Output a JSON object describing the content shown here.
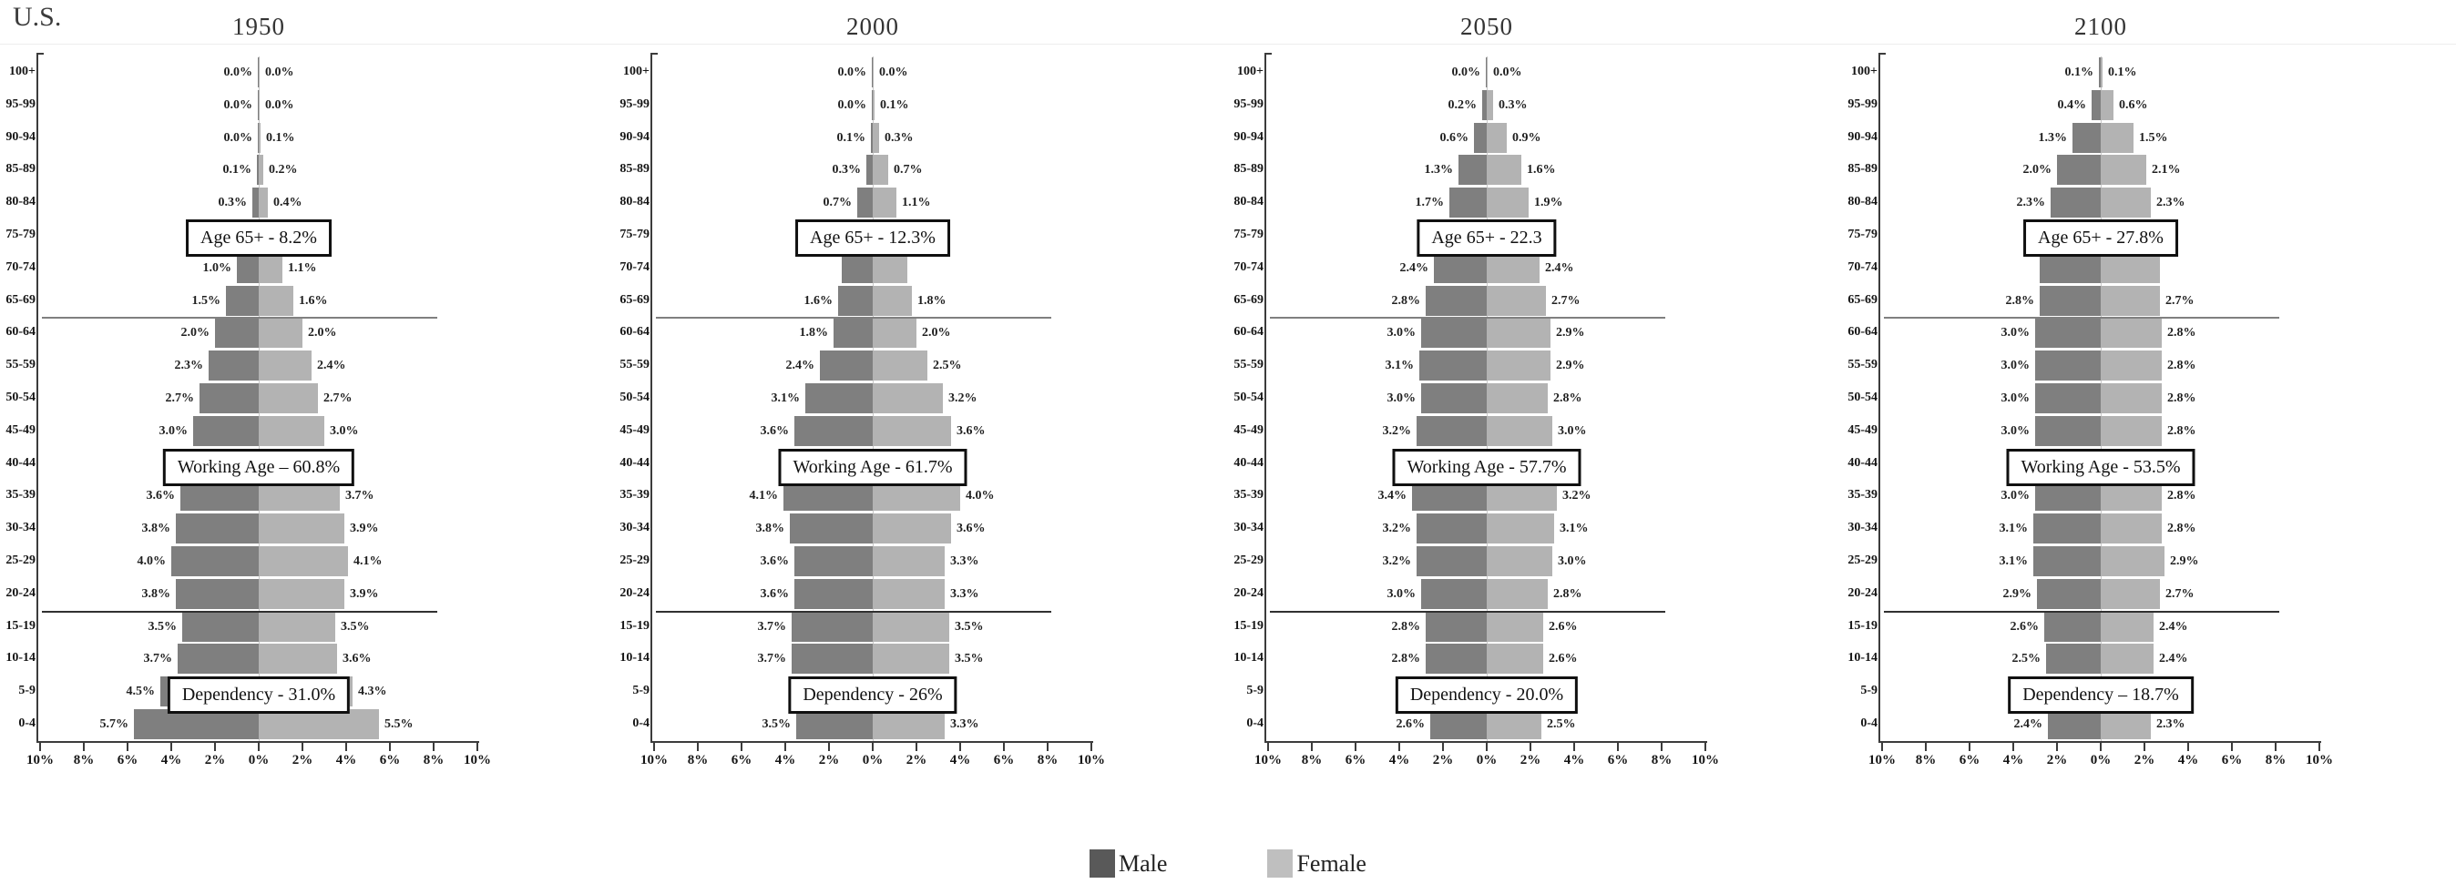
{
  "page": {
    "title": "U.S."
  },
  "legend": {
    "male": "Male",
    "female": "Female"
  },
  "colors": {
    "male_bar": "#7f7f7f",
    "female_bar": "#b3b3b3",
    "legend_male": "#595959",
    "legend_female": "#bfbfbf",
    "separator_65plus": "#808080",
    "separator_working": "#303030",
    "axis": "#3c3c3c"
  },
  "axis": {
    "tick_labels": [
      "10%",
      "8%",
      "6%",
      "4%",
      "2%",
      "0%",
      "2%",
      "4%",
      "6%",
      "8%",
      "10%"
    ],
    "max_percent": 10
  },
  "chart_data": {
    "type": "bar",
    "subtype": "population-pyramid",
    "unit": "percent of total population",
    "x_range_percent": [
      -10,
      10
    ],
    "legend": [
      "Male",
      "Female"
    ],
    "categories_top_to_bottom": [
      "100+",
      "95-99",
      "90-94",
      "85-89",
      "80-84",
      "75-79",
      "70-74",
      "65-69",
      "60-64",
      "55-59",
      "50-54",
      "45-49",
      "40-44",
      "35-39",
      "30-34",
      "25-29",
      "20-24",
      "15-19",
      "10-14",
      "5-9",
      "0-4"
    ],
    "pyramids": [
      {
        "title": "1950",
        "series": [
          {
            "name": "Male",
            "values": [
              0.0,
              0.0,
              0.0,
              0.1,
              0.3,
              0.6,
              1.0,
              1.5,
              2.0,
              2.3,
              2.7,
              3.0,
              3.3,
              3.6,
              3.8,
              4.0,
              3.8,
              3.5,
              3.7,
              4.5,
              5.7
            ]
          },
          {
            "name": "Female",
            "values": [
              0.0,
              0.0,
              0.1,
              0.2,
              0.4,
              0.8,
              1.1,
              1.6,
              2.0,
              2.4,
              2.7,
              3.0,
              3.4,
              3.7,
              3.9,
              4.1,
              3.9,
              3.5,
              3.6,
              4.3,
              5.5
            ]
          }
        ],
        "bar_labels": {
          "male": [
            "0.0%",
            "0.0%",
            "0.0%",
            "0.1%",
            "0.3%",
            null,
            "1.0%",
            "1.5%",
            "2.0%",
            "2.3%",
            "2.7%",
            "3.0%",
            null,
            "3.6%",
            "3.8%",
            "4.0%",
            "3.8%",
            "3.5%",
            "3.7%",
            "4.5%",
            "5.7%"
          ],
          "female": [
            "0.0%",
            "0.0%",
            "0.1%",
            "0.2%",
            "0.4%",
            null,
            "1.1%",
            "1.6%",
            "2.0%",
            "2.4%",
            "2.7%",
            "3.0%",
            null,
            "3.7%",
            "3.9%",
            "4.1%",
            "3.9%",
            "3.5%",
            "3.6%",
            "4.3%",
            "5.5%"
          ]
        },
        "annotations": [
          {
            "name": "age65",
            "text": "Age 65+ - 8.2%"
          },
          {
            "name": "working_age",
            "text": "Working Age – 60.8%"
          },
          {
            "name": "dependency",
            "text": "Dependency -  31.0%"
          }
        ]
      },
      {
        "title": "2000",
        "series": [
          {
            "name": "Male",
            "values": [
              0.0,
              0.0,
              0.1,
              0.3,
              0.7,
              1.1,
              1.4,
              1.6,
              1.8,
              2.4,
              3.1,
              3.6,
              4.0,
              4.1,
              3.8,
              3.6,
              3.6,
              3.7,
              3.7,
              3.7,
              3.5
            ]
          },
          {
            "name": "Female",
            "values": [
              0.0,
              0.1,
              0.3,
              0.7,
              1.1,
              1.5,
              1.6,
              1.8,
              2.0,
              2.5,
              3.2,
              3.6,
              4.0,
              4.0,
              3.6,
              3.3,
              3.3,
              3.5,
              3.5,
              3.6,
              3.3
            ]
          }
        ],
        "bar_labels": {
          "male": [
            "0.0%",
            "0.0%",
            "0.1%",
            "0.3%",
            "0.7%",
            null,
            null,
            "1.6%",
            "1.8%",
            "2.4%",
            "3.1%",
            "3.6%",
            null,
            "4.1%",
            "3.8%",
            "3.6%",
            "3.6%",
            "3.7%",
            "3.7%",
            null,
            "3.5%"
          ],
          "female": [
            "0.0%",
            "0.1%",
            "0.3%",
            "0.7%",
            "1.1%",
            null,
            null,
            "1.8%",
            "2.0%",
            "2.5%",
            "3.2%",
            "3.6%",
            null,
            "4.0%",
            "3.6%",
            "3.3%",
            "3.3%",
            "3.5%",
            "3.5%",
            null,
            "3.3%"
          ]
        },
        "annotations": [
          {
            "name": "age65",
            "text": "Age 65+ - 12.3%"
          },
          {
            "name": "working_age",
            "text": "Working Age - 61.7%"
          },
          {
            "name": "dependency",
            "text": "Dependency - 26%"
          }
        ]
      },
      {
        "title": "2050",
        "series": [
          {
            "name": "Male",
            "values": [
              0.0,
              0.2,
              0.6,
              1.3,
              1.7,
              2.1,
              2.4,
              2.8,
              3.0,
              3.1,
              3.0,
              3.2,
              3.3,
              3.4,
              3.2,
              3.2,
              3.0,
              2.8,
              2.8,
              2.7,
              2.6
            ]
          },
          {
            "name": "Female",
            "values": [
              0.0,
              0.3,
              0.9,
              1.6,
              1.9,
              2.3,
              2.4,
              2.7,
              2.9,
              2.9,
              2.8,
              3.0,
              3.2,
              3.2,
              3.1,
              3.0,
              2.8,
              2.6,
              2.6,
              2.6,
              2.5
            ]
          }
        ],
        "bar_labels": {
          "male": [
            "0.0%",
            "0.2%",
            "0.6%",
            "1.3%",
            "1.7%",
            null,
            "2.4%",
            "2.8%",
            "3.0%",
            "3.1%",
            "3.0%",
            "3.2%",
            null,
            "3.4%",
            "3.2%",
            "3.2%",
            "3.0%",
            "2.8%",
            "2.8%",
            null,
            "2.6%"
          ],
          "female": [
            "0.0%",
            "0.3%",
            "0.9%",
            "1.6%",
            "1.9%",
            null,
            "2.4%",
            "2.7%",
            "2.9%",
            "2.9%",
            "2.8%",
            "3.0%",
            null,
            "3.2%",
            "3.1%",
            "3.0%",
            "2.8%",
            "2.6%",
            "2.6%",
            null,
            "2.5%"
          ]
        },
        "annotations": [
          {
            "name": "age65",
            "text": "Age 65+ - 22.3"
          },
          {
            "name": "working_age",
            "text": "Working Age - 57.7%"
          },
          {
            "name": "dependency",
            "text": "Dependency - 20.0%"
          }
        ]
      },
      {
        "title": "2100",
        "series": [
          {
            "name": "Male",
            "values": [
              0.1,
              0.4,
              1.3,
              2.0,
              2.3,
              2.6,
              2.8,
              2.8,
              3.0,
              3.0,
              3.0,
              3.0,
              3.0,
              3.0,
              3.1,
              3.1,
              2.9,
              2.6,
              2.5,
              2.4,
              2.4
            ]
          },
          {
            "name": "Female",
            "values": [
              0.1,
              0.6,
              1.5,
              2.1,
              2.3,
              2.5,
              2.7,
              2.7,
              2.8,
              2.8,
              2.8,
              2.8,
              2.8,
              2.8,
              2.8,
              2.9,
              2.7,
              2.4,
              2.4,
              2.3,
              2.3
            ]
          }
        ],
        "bar_labels": {
          "male": [
            "0.1%",
            "0.4%",
            "1.3%",
            "2.0%",
            "2.3%",
            null,
            null,
            "2.8%",
            "3.0%",
            "3.0%",
            "3.0%",
            "3.0%",
            null,
            "3.0%",
            "3.1%",
            "3.1%",
            "2.9%",
            "2.6%",
            "2.5%",
            null,
            "2.4%"
          ],
          "female": [
            "0.1%",
            "0.6%",
            "1.5%",
            "2.1%",
            "2.3%",
            null,
            null,
            "2.7%",
            "2.8%",
            "2.8%",
            "2.8%",
            "2.8%",
            null,
            "2.8%",
            "2.8%",
            "2.9%",
            "2.7%",
            "2.4%",
            "2.4%",
            null,
            "2.3%"
          ]
        },
        "annotations": [
          {
            "name": "age65",
            "text": "Age 65+ - 27.8%"
          },
          {
            "name": "working_age",
            "text": "Working Age - 53.5%"
          },
          {
            "name": "dependency",
            "text": "Dependency – 18.7%"
          }
        ]
      }
    ],
    "separator_lines": [
      "boundary below 65-69 row",
      "boundary below 20-24 row"
    ]
  }
}
